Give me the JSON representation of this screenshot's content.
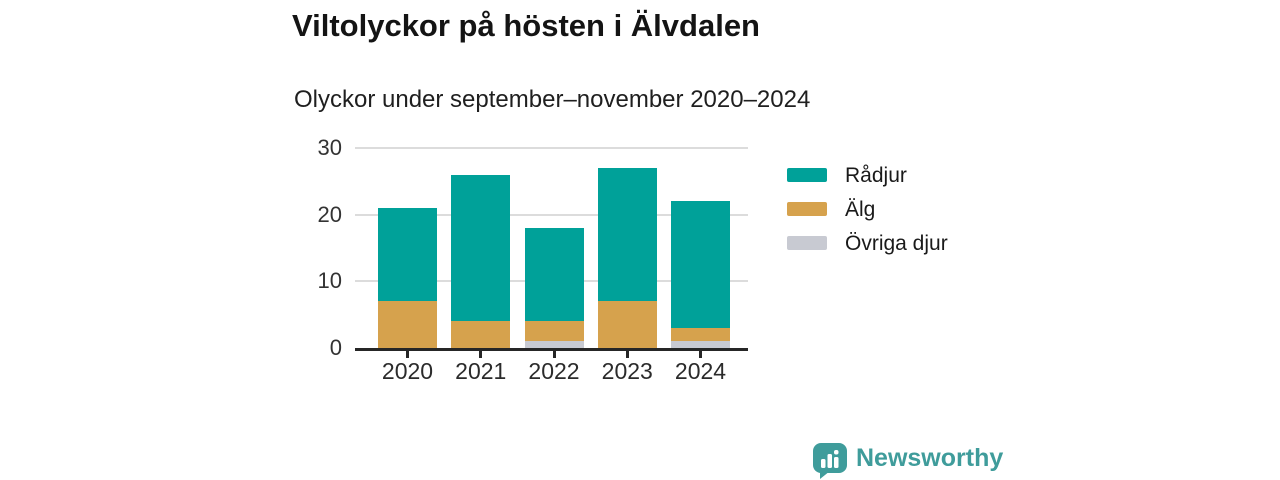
{
  "title": "Viltolyckor på hösten i Älvdalen",
  "subtitle": "Olyckor under september–november 2020–2024",
  "chart_data": {
    "type": "bar",
    "stacked": true,
    "title": "Viltolyckor på hösten i Älvdalen",
    "subtitle": "Olyckor under september–november 2020–2024",
    "categories": [
      "2020",
      "2021",
      "2022",
      "2023",
      "2024"
    ],
    "series": [
      {
        "name": "Rådjur",
        "color": "#00a199",
        "values": [
          14,
          22,
          14,
          20,
          19
        ]
      },
      {
        "name": "Älg",
        "color": "#d6a24d",
        "values": [
          7,
          4,
          3,
          7,
          2
        ]
      },
      {
        "name": "Övriga djur",
        "color": "#c8cad2",
        "values": [
          0,
          0,
          1,
          0,
          1
        ]
      }
    ],
    "stack_order_bottom_to_top": [
      "Övriga djur",
      "Älg",
      "Rådjur"
    ],
    "totals": [
      21,
      26,
      18,
      27,
      22
    ],
    "xlabel": "",
    "ylabel": "",
    "ylim": [
      0,
      30
    ],
    "y_ticks": [
      0,
      10,
      20,
      30
    ],
    "grid": true,
    "legend_position": "right"
  },
  "colors": {
    "radjur_teal": "#00a199",
    "alg_gold": "#d6a24d",
    "ovriga_gray": "#c8cad2",
    "axis": "#262626",
    "gridline": "#dcdcdc",
    "brand_teal": "#3f9c9b",
    "background": "#ffffff"
  },
  "branding": {
    "logo_text": "Newsworthy",
    "logo_icon": "newsworthy-speech-bubble-bar-chart-icon",
    "color": "#3f9c9b"
  }
}
